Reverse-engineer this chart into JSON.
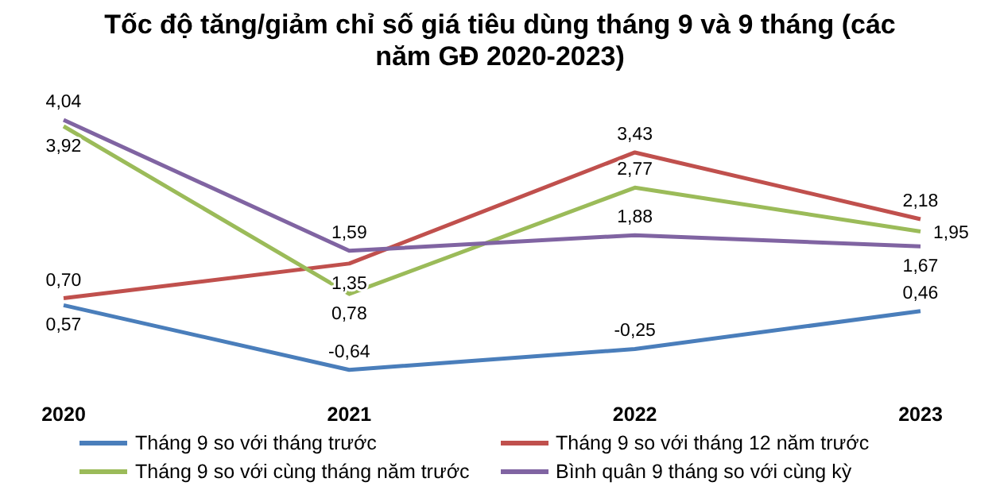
{
  "chart_data": {
    "type": "line",
    "title": "Tốc độ tăng/giảm chỉ số giá tiêu dùng tháng 9 và 9 tháng (các năm GĐ 2020-2023)",
    "categories": [
      "2020",
      "2021",
      "2022",
      "2023"
    ],
    "tick_labels": "x",
    "legend": "bottom",
    "marker": "none",
    "series": [
      {
        "name": "Tháng 9 so với tháng trước",
        "color": "#4a7ebb",
        "values": [
          0.57,
          -0.64,
          -0.25,
          0.46
        ],
        "value_labels": [
          "0,57",
          "-0,64",
          "-0,25",
          "0,46"
        ]
      },
      {
        "name": "Tháng 9 so với tháng 12 năm trước",
        "color": "#c0504d",
        "values": [
          0.7,
          1.35,
          3.43,
          2.18
        ],
        "value_labels": [
          "0,70",
          "1,35",
          "3,43",
          "2,18"
        ]
      },
      {
        "name": "Tháng 9 so với cùng tháng năm trước",
        "color": "#9bbb59",
        "values": [
          3.92,
          0.78,
          2.77,
          1.95
        ],
        "value_labels": [
          "3,92",
          "0,78",
          "2,77",
          "1,95"
        ]
      },
      {
        "name": "Bình quân 9 tháng so với cùng kỳ",
        "color": "#8064a2",
        "values": [
          4.04,
          1.59,
          1.88,
          1.67
        ],
        "value_labels": [
          "4,04",
          "1,59",
          "1,88",
          "1,67"
        ]
      }
    ]
  }
}
